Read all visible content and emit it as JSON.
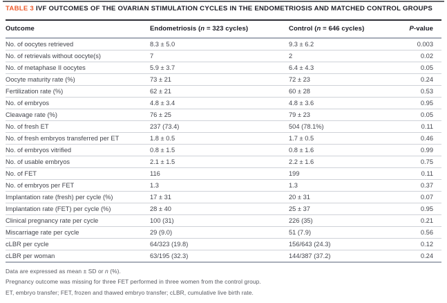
{
  "accent_color": "#ee5a2b",
  "table_label": "TABLE 3",
  "title": "IVF OUTCOMES OF THE OVARIAN STIMULATION CYCLES IN THE ENDOMETRIOSIS AND MATCHED CONTROL GROUPS",
  "columns": {
    "outcome": "Outcome",
    "endo_prefix": "Endometriosis (",
    "endo_n": "n",
    "endo_suffix": " = 323 cycles)",
    "control_prefix": "Control (",
    "control_n": "n",
    "control_suffix": " = 646 cycles)",
    "p_italic": "P",
    "p_suffix": "-value"
  },
  "rows": [
    {
      "outcome": "No. of oocytes retrieved",
      "endometriosis": "8.3 ± 5.0",
      "control": "9.3 ± 6.2",
      "p": "0.003"
    },
    {
      "outcome": "No. of retrievals without oocyte(s)",
      "endometriosis": "7",
      "control": "2",
      "p": "0.02"
    },
    {
      "outcome": "No. of metaphase II oocytes",
      "endometriosis": "5.9 ± 3.7",
      "control": "6.4 ± 4.3",
      "p": "0.05"
    },
    {
      "outcome": "Oocyte maturity rate (%)",
      "endometriosis": "73 ± 21",
      "control": "72 ± 23",
      "p": "0.24"
    },
    {
      "outcome": "Fertilization rate (%)",
      "endometriosis": "62 ± 21",
      "control": "60 ± 28",
      "p": "0.53"
    },
    {
      "outcome": "No. of embryos",
      "endometriosis": "4.8 ± 3.4",
      "control": "4.8 ± 3.6",
      "p": "0.95"
    },
    {
      "outcome": "Cleavage rate (%)",
      "endometriosis": "76 ± 25",
      "control": "79 ± 23",
      "p": "0.05"
    },
    {
      "outcome": "No. of fresh ET",
      "endometriosis": "237 (73.4)",
      "control": "504 (78.1%)",
      "p": "0.11"
    },
    {
      "outcome": "No. of fresh embryos transferred per ET",
      "endometriosis": "1.8 ± 0.5",
      "control": "1.7 ± 0.5",
      "p": "0.46"
    },
    {
      "outcome": "No. of embryos vitrified",
      "endometriosis": "0.8 ± 1.5",
      "control": "0.8 ± 1.6",
      "p": "0.99"
    },
    {
      "outcome": "No. of usable embryos",
      "endometriosis": "2.1 ± 1.5",
      "control": "2.2 ± 1.6",
      "p": "0.75"
    },
    {
      "outcome": "No. of FET",
      "endometriosis": "116",
      "control": "199",
      "p": "0.11"
    },
    {
      "outcome": "No. of embryos per FET",
      "endometriosis": "1.3",
      "control": "1.3",
      "p": "0.37"
    },
    {
      "outcome": "Implantation rate (fresh) per cycle (%)",
      "endometriosis": "17 ± 31",
      "control": "20 ± 31",
      "p": "0.07"
    },
    {
      "outcome": "Implantation rate (FET) per cycle (%)",
      "endometriosis": "28 ± 40",
      "control": "25 ± 37",
      "p": "0.95"
    },
    {
      "outcome": "Clinical pregnancy rate per cycle",
      "endometriosis": "100 (31)",
      "control": "226 (35)",
      "p": "0.21"
    },
    {
      "outcome": "Miscarriage rate per cycle",
      "endometriosis": "29 (9.0)",
      "control": "51 (7.9)",
      "p": "0.56"
    },
    {
      "outcome": "cLBR per cycle",
      "endometriosis": "64/323 (19.8)",
      "control": "156/643 (24.3)",
      "p": "0.12"
    },
    {
      "outcome": "cLBR per woman",
      "endometriosis": "63/195 (32.3)",
      "control": "144/387 (37.2)",
      "p": "0.24"
    }
  ],
  "footnotes": {
    "line1_prefix": "Data are expressed as mean ± SD or ",
    "line1_n": "n",
    "line1_suffix": " (%).",
    "line2": "Pregnancy outcome was missing for three FET performed in three women from the control group.",
    "line3": "ET, embryo transfer; FET, frozen and thawed embryo transfer; cLBR, cumulative live birth rate."
  }
}
